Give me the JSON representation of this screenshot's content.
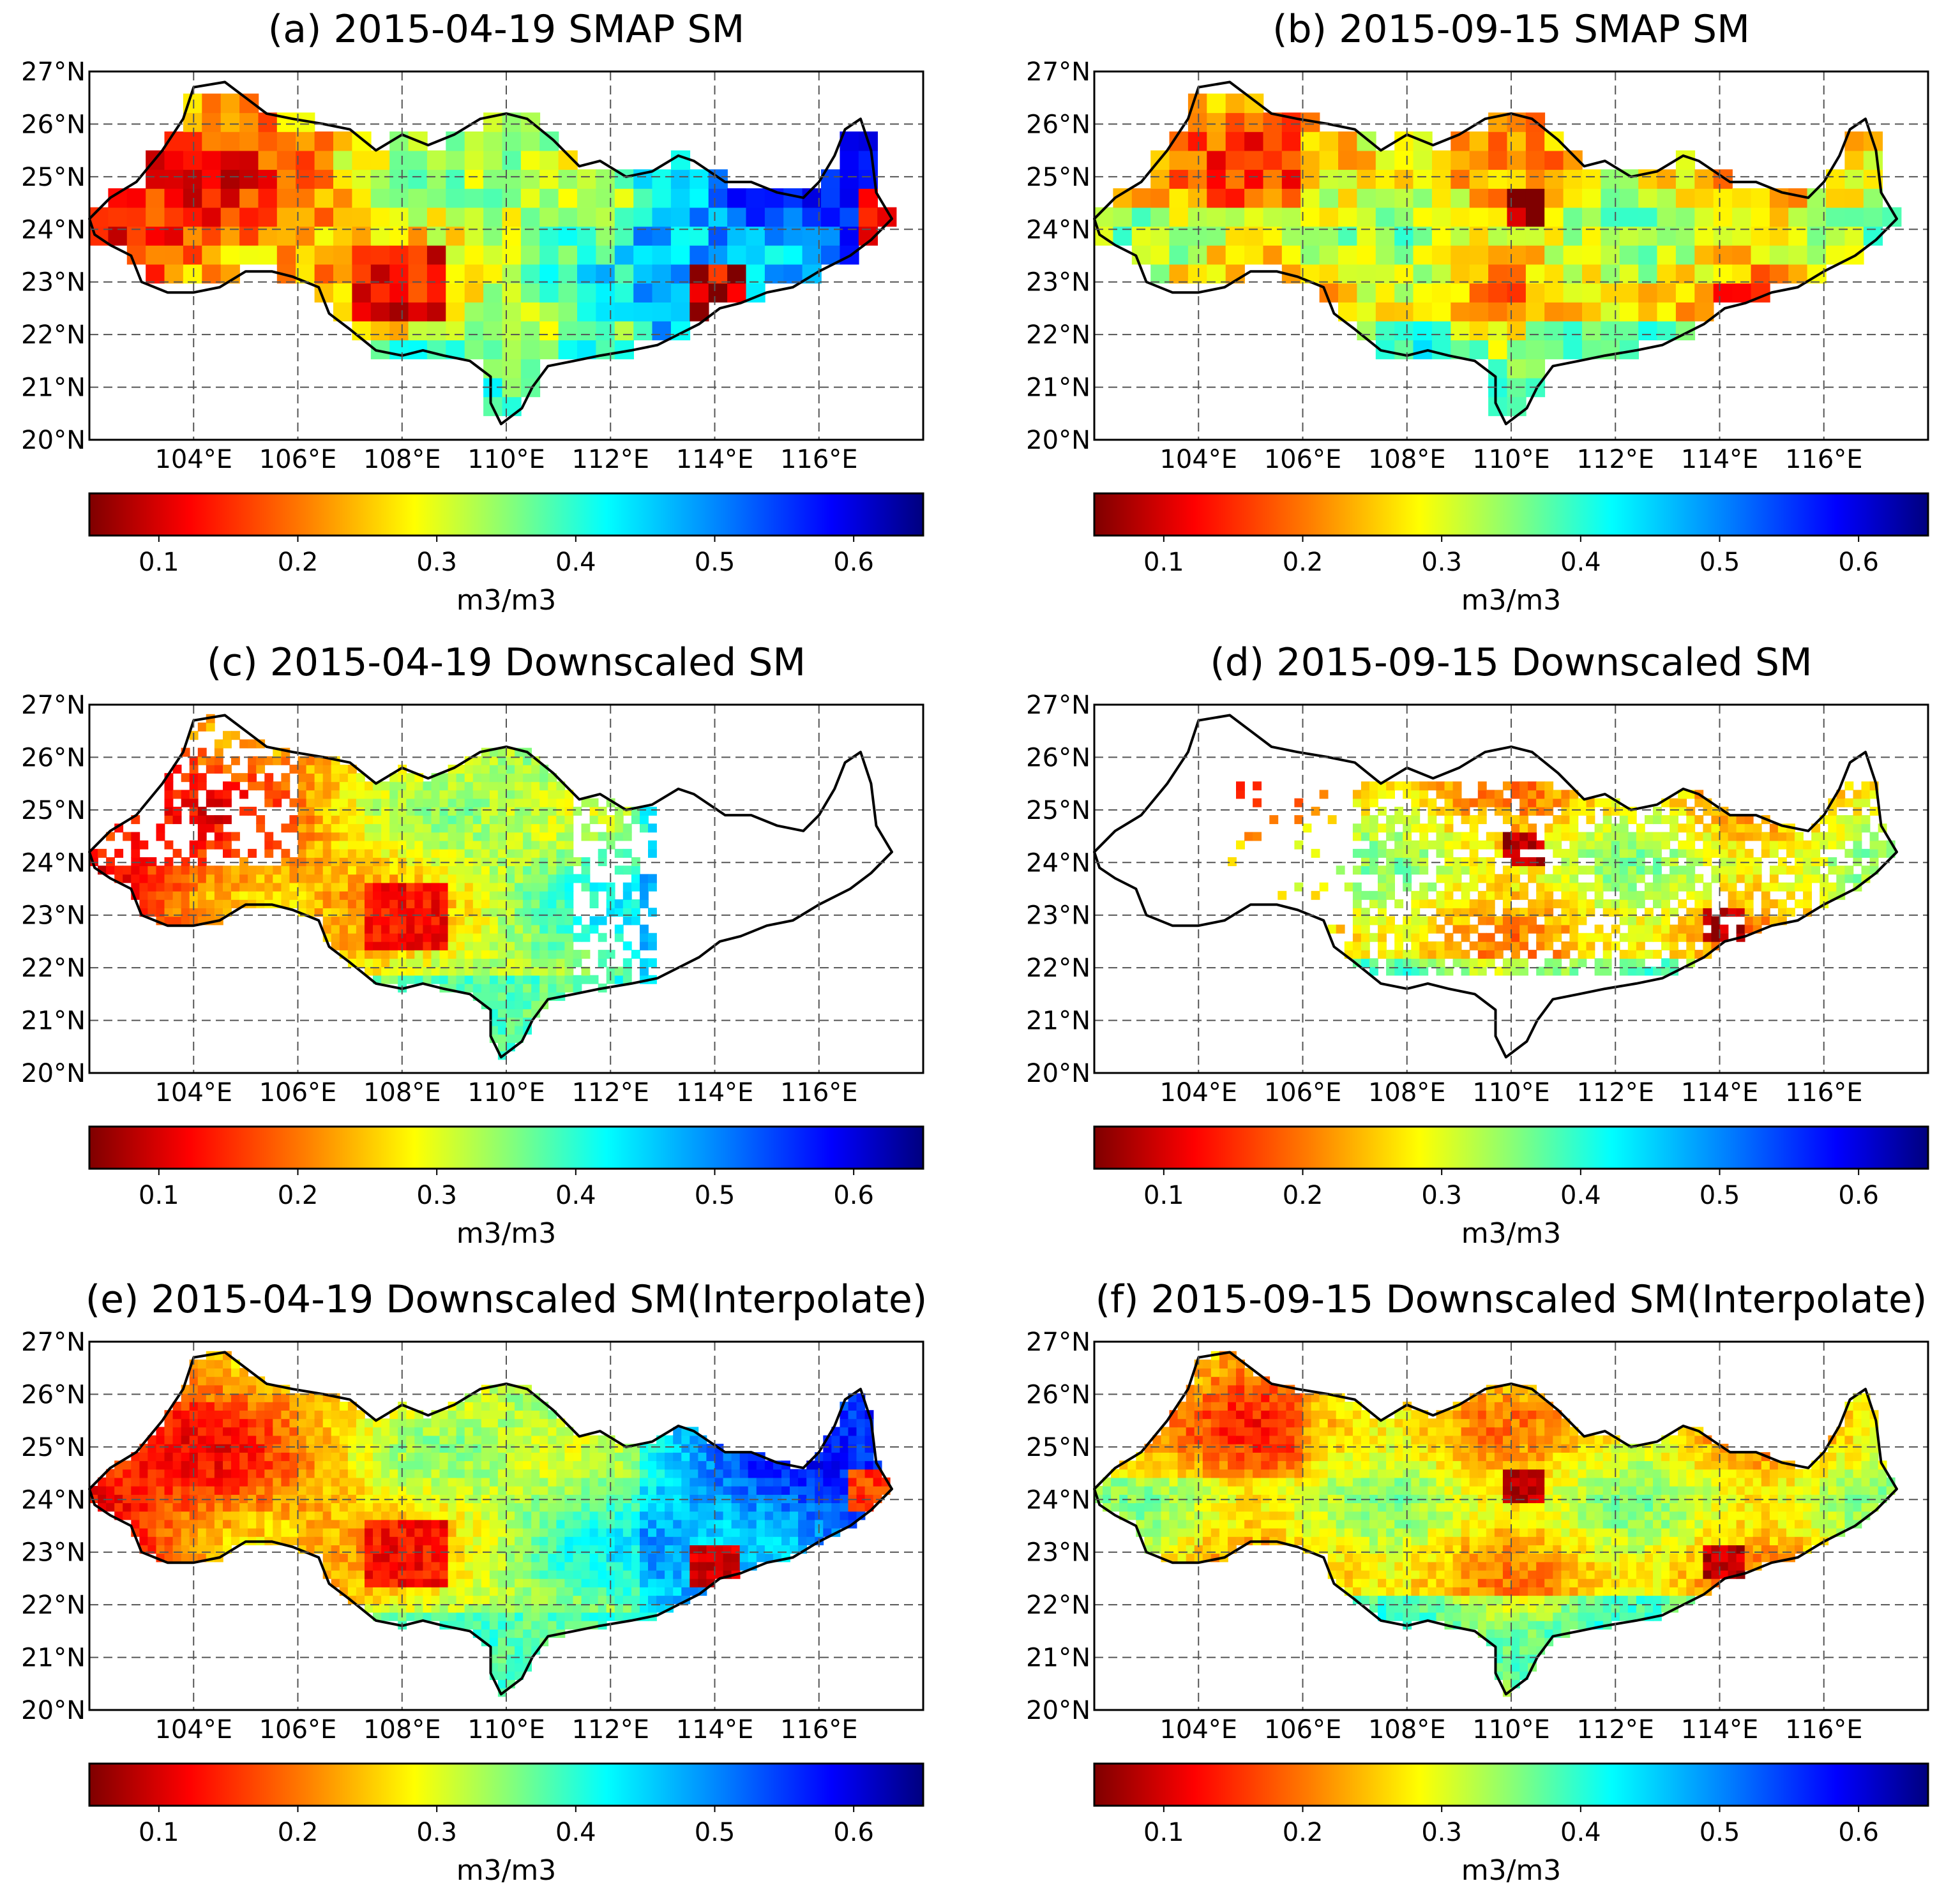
{
  "figure": {
    "colormap": [
      "#7f0000",
      "#ff0000",
      "#ff7f00",
      "#ffff00",
      "#7fff7f",
      "#00ffff",
      "#007fff",
      "#0000ff",
      "#00007f"
    ],
    "panels": [
      {
        "title": "(a) 2015-04-19 SMAP SM",
        "scene": "a",
        "coverage": "full",
        "colorbar_label": "m3/m3"
      },
      {
        "title": "(b) 2015-09-15 SMAP SM",
        "scene": "b",
        "coverage": "full",
        "colorbar_label": "m3/m3"
      },
      {
        "title": "(c) 2015-04-19 Downscaled SM",
        "scene": "a",
        "coverage": "west",
        "colorbar_label": "m3/m3"
      },
      {
        "title": "(d) 2015-09-15 Downscaled SM",
        "scene": "b",
        "coverage": "center",
        "colorbar_label": "m3/m3"
      },
      {
        "title": "(e) 2015-04-19 Downscaled SM(Interpolate)",
        "scene": "a",
        "coverage": "full",
        "colorbar_label": "m3/m3"
      },
      {
        "title": "(f) 2015-09-15 Downscaled SM(Interpolate)",
        "scene": "b",
        "coverage": "full",
        "colorbar_label": "m3/m3"
      }
    ]
  },
  "chart_data": [
    {
      "type": "heatmap",
      "title": "(a) 2015-04-19 SMAP SM",
      "lon_range": [
        102,
        118
      ],
      "lat_range": [
        20,
        27
      ],
      "x_ticks": [
        "104°E",
        "106°E",
        "108°E",
        "110°E",
        "112°E",
        "114°E",
        "116°E"
      ],
      "y_ticks": [
        "20°N",
        "21°N",
        "22°N",
        "23°N",
        "24°N",
        "25°N",
        "26°N",
        "27°N"
      ],
      "colorbar": {
        "range": [
          0.05,
          0.65
        ],
        "ticks": [
          "0.1",
          "0.2",
          "0.3",
          "0.4",
          "0.5",
          "0.6"
        ],
        "label": "m3/m3"
      }
    },
    {
      "type": "heatmap",
      "title": "(b) 2015-09-15 SMAP SM",
      "lon_range": [
        102,
        118
      ],
      "lat_range": [
        20,
        27
      ],
      "x_ticks": [
        "104°E",
        "106°E",
        "108°E",
        "110°E",
        "112°E",
        "114°E",
        "116°E"
      ],
      "y_ticks": [
        "20°N",
        "21°N",
        "22°N",
        "23°N",
        "24°N",
        "25°N",
        "26°N",
        "27°N"
      ],
      "colorbar": {
        "range": [
          0.05,
          0.65
        ],
        "ticks": [
          "0.1",
          "0.2",
          "0.3",
          "0.4",
          "0.5",
          "0.6"
        ],
        "label": "m3/m3"
      }
    },
    {
      "type": "heatmap",
      "title": "(c) 2015-04-19 Downscaled SM",
      "lon_range": [
        102,
        118
      ],
      "lat_range": [
        20,
        27
      ],
      "x_ticks": [
        "104°E",
        "106°E",
        "108°E",
        "110°E",
        "112°E",
        "114°E",
        "116°E"
      ],
      "y_ticks": [
        "20°N",
        "21°N",
        "22°N",
        "23°N",
        "24°N",
        "25°N",
        "26°N",
        "27°N"
      ],
      "colorbar": {
        "range": [
          0.05,
          0.65
        ],
        "ticks": [
          "0.1",
          "0.2",
          "0.3",
          "0.4",
          "0.5",
          "0.6"
        ],
        "label": "m3/m3"
      }
    },
    {
      "type": "heatmap",
      "title": "(d) 2015-09-15 Downscaled SM",
      "lon_range": [
        102,
        118
      ],
      "lat_range": [
        20,
        27
      ],
      "x_ticks": [
        "104°E",
        "106°E",
        "108°E",
        "110°E",
        "112°E",
        "114°E",
        "116°E"
      ],
      "y_ticks": [
        "20°N",
        "21°N",
        "22°N",
        "23°N",
        "24°N",
        "25°N",
        "26°N",
        "27°N"
      ],
      "colorbar": {
        "range": [
          0.05,
          0.65
        ],
        "ticks": [
          "0.1",
          "0.2",
          "0.3",
          "0.4",
          "0.5",
          "0.6"
        ],
        "label": "m3/m3"
      }
    },
    {
      "type": "heatmap",
      "title": "(e) 2015-04-19 Downscaled SM(Interpolate)",
      "lon_range": [
        102,
        118
      ],
      "lat_range": [
        20,
        27
      ],
      "x_ticks": [
        "104°E",
        "106°E",
        "108°E",
        "110°E",
        "112°E",
        "114°E",
        "116°E"
      ],
      "y_ticks": [
        "20°N",
        "21°N",
        "22°N",
        "23°N",
        "24°N",
        "25°N",
        "26°N",
        "27°N"
      ],
      "colorbar": {
        "range": [
          0.05,
          0.65
        ],
        "ticks": [
          "0.1",
          "0.2",
          "0.3",
          "0.4",
          "0.5",
          "0.6"
        ],
        "label": "m3/m3"
      }
    },
    {
      "type": "heatmap",
      "title": "(f) 2015-09-15 Downscaled SM(Interpolate)",
      "lon_range": [
        102,
        118
      ],
      "lat_range": [
        20,
        27
      ],
      "x_ticks": [
        "104°E",
        "106°E",
        "108°E",
        "110°E",
        "112°E",
        "114°E",
        "116°E"
      ],
      "y_ticks": [
        "20°N",
        "21°N",
        "22°N",
        "23°N",
        "24°N",
        "25°N",
        "26°N",
        "27°N"
      ],
      "colorbar": {
        "range": [
          0.05,
          0.65
        ],
        "ticks": [
          "0.1",
          "0.2",
          "0.3",
          "0.4",
          "0.5",
          "0.6"
        ],
        "label": "m3/m3"
      }
    }
  ]
}
